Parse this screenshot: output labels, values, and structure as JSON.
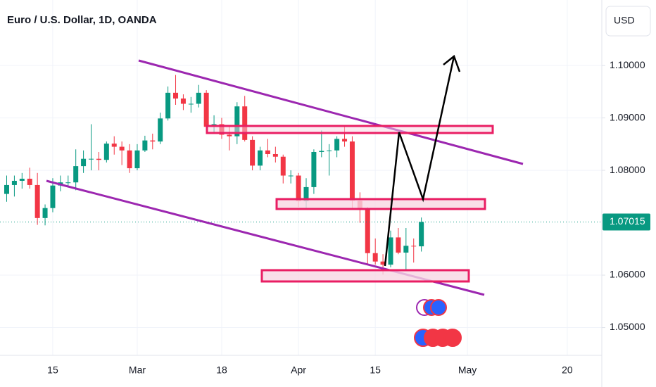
{
  "chart_data": {
    "type": "candlestick",
    "title": "Euro / U.S. Dollar, 1D, OANDA",
    "currency": "USD",
    "categories": [
      null,
      null,
      null,
      null,
      null,
      null,
      "15",
      null,
      null,
      null,
      null,
      null,
      null,
      null,
      null,
      null,
      null,
      "Mar",
      null,
      null,
      null,
      null,
      null,
      null,
      null,
      null,
      null,
      null,
      "18",
      null,
      null,
      null,
      null,
      null,
      null,
      null,
      null,
      null,
      "Apr",
      null,
      null,
      null,
      null,
      null,
      null,
      null,
      null,
      null,
      "15",
      null,
      null,
      null,
      null,
      null,
      null,
      null,
      null,
      null,
      null,
      null,
      "May",
      null,
      null,
      null,
      null,
      null,
      null,
      null,
      null,
      null,
      null,
      null,
      null,
      "20",
      null,
      null,
      null,
      null
    ],
    "open": [
      1.0755,
      1.0772,
      1.078,
      1.0784,
      1.0772,
      1.0709,
      1.0728,
      1.0771,
      1.0777,
      1.0777,
      1.0808,
      1.0822,
      1.0822,
      1.082,
      1.0851,
      1.0845,
      1.0838,
      1.0804,
      1.0838,
      1.0857,
      1.0855,
      1.0899,
      1.0948,
      1.0937,
      1.0927,
      1.0927,
      1.0948,
      1.0883,
      1.0888,
      1.0868,
      1.0865,
      1.0922,
      1.0858,
      1.0809,
      1.0838,
      1.0831,
      1.0826,
      1.079,
      1.079,
      1.0741,
      1.0768,
      1.0835,
      1.0837,
      1.0838,
      1.086,
      1.0855,
      1.0742,
      1.0726,
      1.0642,
      1.0626,
      1.062,
      1.0672,
      1.0643,
      1.0656,
      1.0655,
      null,
      null,
      null,
      null,
      null,
      null,
      null,
      null,
      null,
      null,
      null,
      null,
      null,
      null,
      null,
      null,
      null,
      null,
      null,
      null,
      null,
      null,
      null
    ],
    "high": [
      1.079,
      1.079,
      1.0795,
      1.0805,
      1.0795,
      1.0735,
      1.0785,
      1.079,
      1.079,
      1.084,
      1.0838,
      1.0888,
      1.0835,
      1.0855,
      1.0865,
      1.0855,
      1.085,
      1.085,
      1.0866,
      1.087,
      1.091,
      1.096,
      1.0982,
      1.0945,
      1.094,
      1.0963,
      1.0953,
      1.0905,
      1.09,
      1.0885,
      1.093,
      1.0942,
      1.0865,
      1.0845,
      1.086,
      1.0845,
      1.083,
      1.08,
      1.0795,
      1.0785,
      1.084,
      1.0876,
      1.085,
      1.0865,
      1.0885,
      1.0865,
      1.0758,
      1.073,
      1.067,
      1.064,
      1.0685,
      1.069,
      1.069,
      1.067,
      1.071,
      null,
      null,
      null,
      null,
      null,
      null,
      null,
      null,
      null,
      null,
      null,
      null,
      null,
      null,
      null,
      null,
      null,
      null,
      null,
      null,
      null,
      null,
      null
    ],
    "low": [
      1.074,
      1.075,
      1.0765,
      1.0765,
      1.0696,
      1.0695,
      1.072,
      1.076,
      1.077,
      1.0762,
      1.0795,
      1.08,
      1.08,
      1.0815,
      1.083,
      1.081,
      1.0795,
      1.08,
      1.0835,
      1.084,
      1.085,
      1.0895,
      1.0925,
      1.0915,
      1.091,
      1.092,
      1.088,
      1.0873,
      1.086,
      1.0838,
      1.085,
      1.0855,
      1.08,
      1.08,
      1.0825,
      1.0815,
      1.0775,
      1.0775,
      1.073,
      1.0725,
      1.0755,
      1.0825,
      1.079,
      1.0825,
      1.0845,
      1.0728,
      1.07,
      1.0622,
      1.062,
      1.0601,
      1.0615,
      1.064,
      1.061,
      1.0624,
      1.0645,
      null,
      null,
      null,
      null,
      null,
      null,
      null,
      null,
      null,
      null,
      null,
      null,
      null,
      null,
      null,
      null,
      null,
      null,
      null,
      null,
      null,
      null,
      null
    ],
    "close": [
      1.0772,
      1.078,
      1.0784,
      1.0772,
      1.0709,
      1.0728,
      1.0771,
      1.0777,
      1.0777,
      1.0808,
      1.0822,
      1.0822,
      1.082,
      1.0851,
      1.0845,
      1.0838,
      1.0804,
      1.0838,
      1.0857,
      1.0855,
      1.0899,
      1.0948,
      1.0937,
      1.0927,
      1.0927,
      1.0948,
      1.0883,
      1.0888,
      1.0868,
      1.0865,
      1.0922,
      1.0858,
      1.0809,
      1.0838,
      1.0831,
      1.0826,
      1.079,
      1.079,
      1.0741,
      1.0768,
      1.0835,
      1.0837,
      1.0838,
      1.086,
      1.0855,
      1.0742,
      1.0726,
      1.0642,
      1.0626,
      1.062,
      1.0672,
      1.0643,
      1.0656,
      1.0655,
      1.07015,
      null,
      null,
      null,
      null,
      null,
      null,
      null,
      null,
      null,
      null,
      null,
      null,
      null,
      null,
      null,
      null,
      null,
      null,
      null,
      null,
      null,
      null,
      null
    ],
    "up_color": "#089981",
    "down_color": "#f23645",
    "ylim": [
      1.0447,
      1.1125
    ],
    "yticks": [
      {
        "value": 1.05,
        "label": "1.05000"
      },
      {
        "value": 1.06,
        "label": "1.06000"
      },
      {
        "value": 1.08,
        "label": "1.08000"
      },
      {
        "value": 1.09,
        "label": "1.09000"
      },
      {
        "value": 1.1,
        "label": "1.10000"
      }
    ],
    "grid": true
  }
}
